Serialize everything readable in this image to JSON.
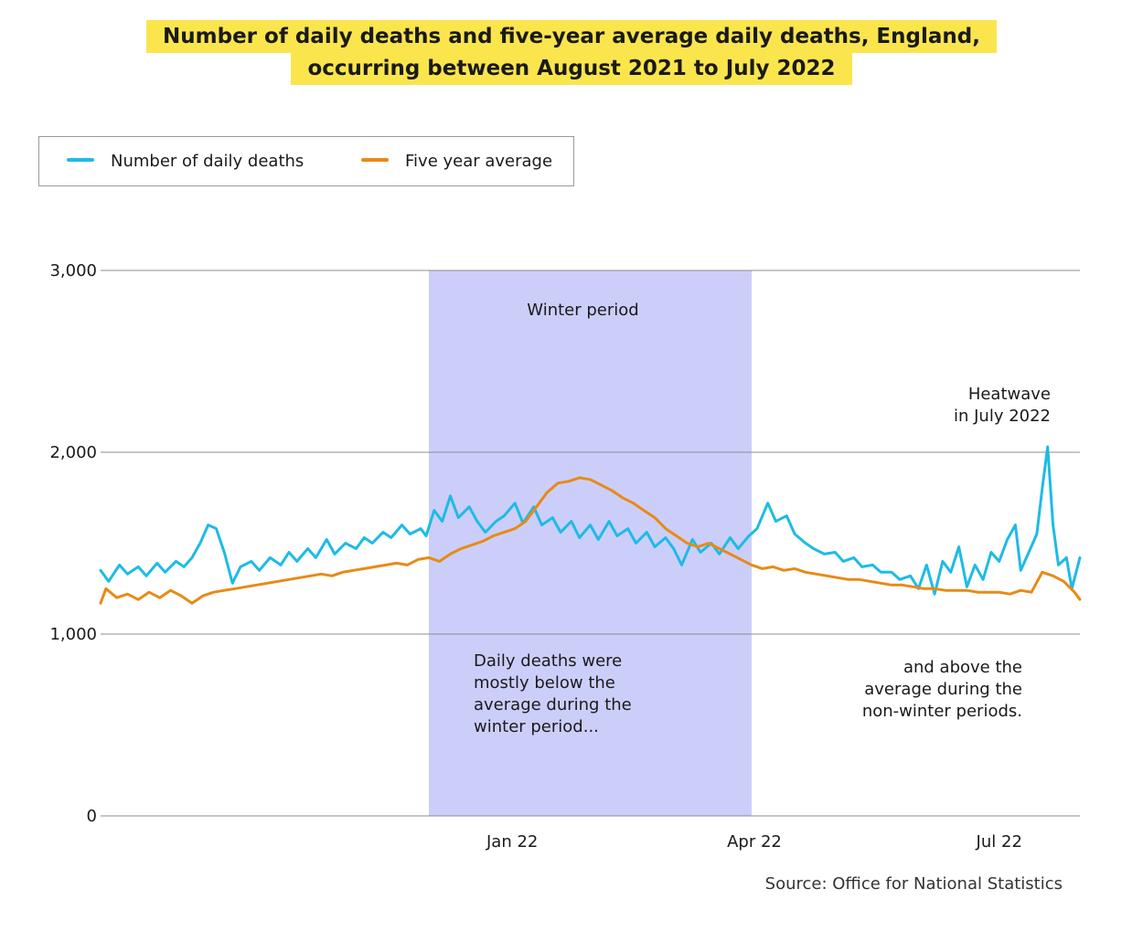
{
  "title": {
    "line1": "Number of daily deaths and five-year average daily deaths, England,",
    "line2": "occurring between August 2021 to July 2022"
  },
  "legend": {
    "deaths_label": "Number of daily deaths",
    "avg_label": "Five year average"
  },
  "source": "Source: Office for National Statistics",
  "colors": {
    "deaths": "#1ebbe6",
    "average": "#e88a16",
    "winter_band": "#cccefa",
    "grid": "#8c8c8c",
    "title_bg": "#fbe54d"
  },
  "chart_data": {
    "type": "line",
    "x_start": "2021-08-01",
    "x_end": "2022-07-31",
    "x_ticks": [
      {
        "date": "2022-01-01",
        "label": "Jan 22"
      },
      {
        "date": "2022-04-01",
        "label": "Apr 22"
      },
      {
        "date": "2022-07-01",
        "label": "Jul 22"
      }
    ],
    "ylim": [
      0,
      3000
    ],
    "y_ticks": [
      {
        "value": 0,
        "label": "0"
      },
      {
        "value": 1000,
        "label": "1,000"
      },
      {
        "value": 2000,
        "label": "2,000"
      },
      {
        "value": 3000,
        "label": "3,000"
      }
    ],
    "grid": true,
    "legend_position": "top-left",
    "shaded_periods": [
      {
        "start": "2021-12-01",
        "end": "2022-03-31",
        "label": "Winter period"
      }
    ],
    "annotations": {
      "winter": [
        "Daily deaths were",
        "mostly below the",
        "average during the",
        "winter period..."
      ],
      "nonwinter": [
        "and above the",
        "average during the",
        "non-winter periods."
      ],
      "heatwave": [
        "Heatwave",
        "in July 2022"
      ]
    },
    "series": [
      {
        "name": "Number of daily deaths",
        "color": "#1ebbe6",
        "points": [
          [
            "2021-08-01",
            1350
          ],
          [
            "2021-08-04",
            1290
          ],
          [
            "2021-08-08",
            1380
          ],
          [
            "2021-08-11",
            1330
          ],
          [
            "2021-08-15",
            1370
          ],
          [
            "2021-08-18",
            1320
          ],
          [
            "2021-08-22",
            1390
          ],
          [
            "2021-08-25",
            1340
          ],
          [
            "2021-08-29",
            1400
          ],
          [
            "2021-09-01",
            1370
          ],
          [
            "2021-09-04",
            1420
          ],
          [
            "2021-09-07",
            1500
          ],
          [
            "2021-09-10",
            1600
          ],
          [
            "2021-09-13",
            1580
          ],
          [
            "2021-09-16",
            1450
          ],
          [
            "2021-09-19",
            1280
          ],
          [
            "2021-09-22",
            1370
          ],
          [
            "2021-09-26",
            1400
          ],
          [
            "2021-09-29",
            1350
          ],
          [
            "2021-10-03",
            1420
          ],
          [
            "2021-10-07",
            1380
          ],
          [
            "2021-10-10",
            1450
          ],
          [
            "2021-10-13",
            1400
          ],
          [
            "2021-10-17",
            1470
          ],
          [
            "2021-10-20",
            1420
          ],
          [
            "2021-10-24",
            1520
          ],
          [
            "2021-10-27",
            1440
          ],
          [
            "2021-10-31",
            1500
          ],
          [
            "2021-11-04",
            1470
          ],
          [
            "2021-11-07",
            1530
          ],
          [
            "2021-11-10",
            1500
          ],
          [
            "2021-11-14",
            1560
          ],
          [
            "2021-11-17",
            1530
          ],
          [
            "2021-11-21",
            1600
          ],
          [
            "2021-11-24",
            1550
          ],
          [
            "2021-11-28",
            1580
          ],
          [
            "2021-11-30",
            1540
          ],
          [
            "2021-12-03",
            1680
          ],
          [
            "2021-12-06",
            1620
          ],
          [
            "2021-12-09",
            1760
          ],
          [
            "2021-12-12",
            1640
          ],
          [
            "2021-12-16",
            1700
          ],
          [
            "2021-12-19",
            1620
          ],
          [
            "2021-12-22",
            1560
          ],
          [
            "2021-12-26",
            1620
          ],
          [
            "2021-12-29",
            1650
          ],
          [
            "2022-01-02",
            1720
          ],
          [
            "2022-01-05",
            1610
          ],
          [
            "2022-01-09",
            1700
          ],
          [
            "2022-01-12",
            1600
          ],
          [
            "2022-01-16",
            1640
          ],
          [
            "2022-01-19",
            1560
          ],
          [
            "2022-01-23",
            1620
          ],
          [
            "2022-01-26",
            1530
          ],
          [
            "2022-01-30",
            1600
          ],
          [
            "2022-02-02",
            1520
          ],
          [
            "2022-02-06",
            1620
          ],
          [
            "2022-02-09",
            1540
          ],
          [
            "2022-02-13",
            1580
          ],
          [
            "2022-02-16",
            1500
          ],
          [
            "2022-02-20",
            1560
          ],
          [
            "2022-02-23",
            1480
          ],
          [
            "2022-02-27",
            1530
          ],
          [
            "2022-03-02",
            1470
          ],
          [
            "2022-03-05",
            1380
          ],
          [
            "2022-03-09",
            1520
          ],
          [
            "2022-03-12",
            1450
          ],
          [
            "2022-03-16",
            1500
          ],
          [
            "2022-03-19",
            1440
          ],
          [
            "2022-03-23",
            1530
          ],
          [
            "2022-03-26",
            1470
          ],
          [
            "2022-03-30",
            1540
          ],
          [
            "2022-04-02",
            1580
          ],
          [
            "2022-04-06",
            1720
          ],
          [
            "2022-04-09",
            1620
          ],
          [
            "2022-04-13",
            1650
          ],
          [
            "2022-04-16",
            1550
          ],
          [
            "2022-04-20",
            1500
          ],
          [
            "2022-04-23",
            1470
          ],
          [
            "2022-04-27",
            1440
          ],
          [
            "2022-05-01",
            1450
          ],
          [
            "2022-05-04",
            1400
          ],
          [
            "2022-05-08",
            1420
          ],
          [
            "2022-05-11",
            1370
          ],
          [
            "2022-05-15",
            1380
          ],
          [
            "2022-05-18",
            1340
          ],
          [
            "2022-05-22",
            1340
          ],
          [
            "2022-05-25",
            1300
          ],
          [
            "2022-05-29",
            1320
          ],
          [
            "2022-06-01",
            1250
          ],
          [
            "2022-06-04",
            1380
          ],
          [
            "2022-06-07",
            1220
          ],
          [
            "2022-06-10",
            1400
          ],
          [
            "2022-06-13",
            1340
          ],
          [
            "2022-06-16",
            1480
          ],
          [
            "2022-06-19",
            1260
          ],
          [
            "2022-06-22",
            1380
          ],
          [
            "2022-06-25",
            1300
          ],
          [
            "2022-06-28",
            1450
          ],
          [
            "2022-07-01",
            1400
          ],
          [
            "2022-07-04",
            1520
          ],
          [
            "2022-07-07",
            1600
          ],
          [
            "2022-07-09",
            1350
          ],
          [
            "2022-07-12",
            1450
          ],
          [
            "2022-07-15",
            1550
          ],
          [
            "2022-07-17",
            1800
          ],
          [
            "2022-07-19",
            2030
          ],
          [
            "2022-07-21",
            1600
          ],
          [
            "2022-07-23",
            1380
          ],
          [
            "2022-07-26",
            1420
          ],
          [
            "2022-07-28",
            1250
          ],
          [
            "2022-07-31",
            1420
          ]
        ]
      },
      {
        "name": "Five year average",
        "color": "#e88a16",
        "points": [
          [
            "2021-08-01",
            1170
          ],
          [
            "2021-08-03",
            1250
          ],
          [
            "2021-08-07",
            1200
          ],
          [
            "2021-08-11",
            1220
          ],
          [
            "2021-08-15",
            1190
          ],
          [
            "2021-08-19",
            1230
          ],
          [
            "2021-08-23",
            1200
          ],
          [
            "2021-08-27",
            1240
          ],
          [
            "2021-08-31",
            1210
          ],
          [
            "2021-09-04",
            1170
          ],
          [
            "2021-09-08",
            1210
          ],
          [
            "2021-09-12",
            1230
          ],
          [
            "2021-09-16",
            1240
          ],
          [
            "2021-09-20",
            1250
          ],
          [
            "2021-09-24",
            1260
          ],
          [
            "2021-09-28",
            1270
          ],
          [
            "2021-10-02",
            1280
          ],
          [
            "2021-10-06",
            1290
          ],
          [
            "2021-10-10",
            1300
          ],
          [
            "2021-10-14",
            1310
          ],
          [
            "2021-10-18",
            1320
          ],
          [
            "2021-10-22",
            1330
          ],
          [
            "2021-10-26",
            1320
          ],
          [
            "2021-10-30",
            1340
          ],
          [
            "2021-11-03",
            1350
          ],
          [
            "2021-11-07",
            1360
          ],
          [
            "2021-11-11",
            1370
          ],
          [
            "2021-11-15",
            1380
          ],
          [
            "2021-11-19",
            1390
          ],
          [
            "2021-11-23",
            1380
          ],
          [
            "2021-11-27",
            1410
          ],
          [
            "2021-12-01",
            1420
          ],
          [
            "2021-12-05",
            1400
          ],
          [
            "2021-12-09",
            1440
          ],
          [
            "2021-12-13",
            1470
          ],
          [
            "2021-12-17",
            1490
          ],
          [
            "2021-12-21",
            1510
          ],
          [
            "2021-12-25",
            1540
          ],
          [
            "2021-12-29",
            1560
          ],
          [
            "2022-01-02",
            1580
          ],
          [
            "2022-01-06",
            1620
          ],
          [
            "2022-01-10",
            1700
          ],
          [
            "2022-01-14",
            1780
          ],
          [
            "2022-01-18",
            1830
          ],
          [
            "2022-01-22",
            1840
          ],
          [
            "2022-01-26",
            1860
          ],
          [
            "2022-01-30",
            1850
          ],
          [
            "2022-02-03",
            1820
          ],
          [
            "2022-02-07",
            1790
          ],
          [
            "2022-02-11",
            1750
          ],
          [
            "2022-02-15",
            1720
          ],
          [
            "2022-02-19",
            1680
          ],
          [
            "2022-02-23",
            1640
          ],
          [
            "2022-02-27",
            1580
          ],
          [
            "2022-03-03",
            1540
          ],
          [
            "2022-03-07",
            1500
          ],
          [
            "2022-03-11",
            1480
          ],
          [
            "2022-03-15",
            1500
          ],
          [
            "2022-03-19",
            1470
          ],
          [
            "2022-03-23",
            1440
          ],
          [
            "2022-03-27",
            1410
          ],
          [
            "2022-03-31",
            1380
          ],
          [
            "2022-04-04",
            1360
          ],
          [
            "2022-04-08",
            1370
          ],
          [
            "2022-04-12",
            1350
          ],
          [
            "2022-04-16",
            1360
          ],
          [
            "2022-04-20",
            1340
          ],
          [
            "2022-04-24",
            1330
          ],
          [
            "2022-04-28",
            1320
          ],
          [
            "2022-05-02",
            1310
          ],
          [
            "2022-05-06",
            1300
          ],
          [
            "2022-05-10",
            1300
          ],
          [
            "2022-05-14",
            1290
          ],
          [
            "2022-05-18",
            1280
          ],
          [
            "2022-05-22",
            1270
          ],
          [
            "2022-05-26",
            1270
          ],
          [
            "2022-05-30",
            1260
          ],
          [
            "2022-06-03",
            1250
          ],
          [
            "2022-06-07",
            1250
          ],
          [
            "2022-06-11",
            1240
          ],
          [
            "2022-06-15",
            1240
          ],
          [
            "2022-06-19",
            1240
          ],
          [
            "2022-06-23",
            1230
          ],
          [
            "2022-06-27",
            1230
          ],
          [
            "2022-07-01",
            1230
          ],
          [
            "2022-07-05",
            1220
          ],
          [
            "2022-07-09",
            1240
          ],
          [
            "2022-07-13",
            1230
          ],
          [
            "2022-07-17",
            1340
          ],
          [
            "2022-07-21",
            1320
          ],
          [
            "2022-07-25",
            1290
          ],
          [
            "2022-07-29",
            1230
          ],
          [
            "2022-07-31",
            1190
          ]
        ]
      }
    ]
  }
}
